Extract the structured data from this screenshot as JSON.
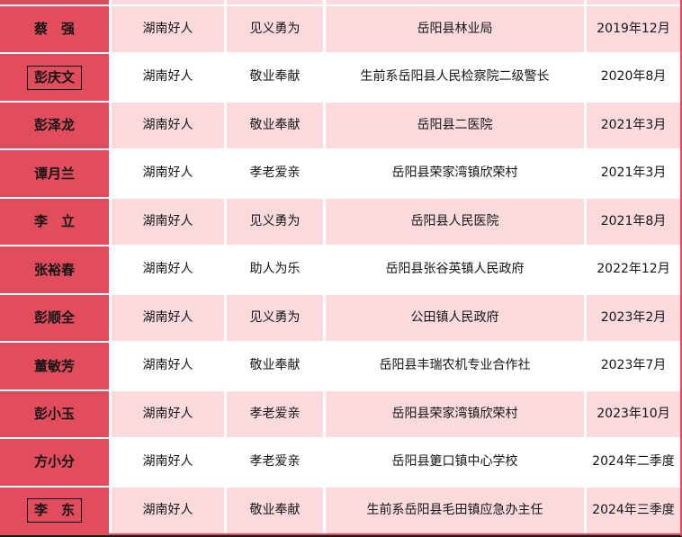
{
  "colors": {
    "crimson": "#e24d5e",
    "pink": "#fadadd",
    "white": "#ffffff",
    "text": "#151515",
    "border_dark": "#1b1b1b"
  },
  "table": {
    "rows": [
      {
        "name": "蔡　强",
        "boxed": false,
        "honor": "湖南好人",
        "category": "见义勇为",
        "org": "岳阳县林业局",
        "date": "2019年12月"
      },
      {
        "name": "彭庆文",
        "boxed": true,
        "honor": "湖南好人",
        "category": "敬业奉献",
        "org": "生前系岳阳县人民检察院二级警长",
        "date": "2020年8月"
      },
      {
        "name": "彭泽龙",
        "boxed": false,
        "honor": "湖南好人",
        "category": "敬业奉献",
        "org": "岳阳县二医院",
        "date": "2021年3月"
      },
      {
        "name": "谭月兰",
        "boxed": false,
        "honor": "湖南好人",
        "category": "孝老爱亲",
        "org": "岳阳县荣家湾镇欣荣村",
        "date": "2021年3月"
      },
      {
        "name": "李　立",
        "boxed": false,
        "honor": "湖南好人",
        "category": "见义勇为",
        "org": "岳阳县人民医院",
        "date": "2021年8月"
      },
      {
        "name": "张裕春",
        "boxed": false,
        "honor": "湖南好人",
        "category": "助人为乐",
        "org": "岳阳县张谷英镇人民政府",
        "date": "2022年12月"
      },
      {
        "name": "彭顺全",
        "boxed": false,
        "honor": "湖南好人",
        "category": "见义勇为",
        "org": "公田镇人民政府",
        "date": "2023年2月"
      },
      {
        "name": "董敏芳",
        "boxed": false,
        "honor": "湖南好人",
        "category": "敬业奉献",
        "org": "岳阳县丰瑞农机专业合作社",
        "date": "2023年7月"
      },
      {
        "name": "彭小玉",
        "boxed": false,
        "honor": "湖南好人",
        "category": "孝老爱亲",
        "org": "岳阳县荣家湾镇欣荣村",
        "date": "2023年10月"
      },
      {
        "name": "方小分",
        "boxed": false,
        "honor": "湖南好人",
        "category": "孝老爱亲",
        "org": "岳阳县筻口镇中心学校",
        "date": "2024年二季度"
      },
      {
        "name": "李　东",
        "boxed": true,
        "honor": "湖南好人",
        "category": "敬业奉献",
        "org": "生前系岳阳县毛田镇应急办主任",
        "date": "2024年三季度"
      }
    ]
  }
}
